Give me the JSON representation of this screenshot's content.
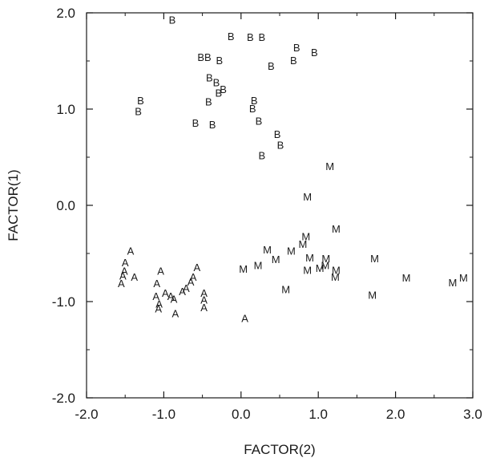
{
  "chart_data": {
    "type": "scatter",
    "xlabel": "FACTOR(2)",
    "ylabel": "FACTOR(1)",
    "xlim": [
      -2.0,
      3.0
    ],
    "ylim": [
      -2.0,
      2.0
    ],
    "xticks": [
      "-2.0",
      "-1.0",
      "0.0",
      "1.0",
      "2.0",
      "3.0"
    ],
    "yticks": [
      "-2.0",
      "-1.0",
      "0.0",
      "1.0",
      "2.0"
    ],
    "grid": false,
    "series": [
      {
        "marker": "B",
        "points": [
          [
            -0.89,
            1.93
          ],
          [
            -0.13,
            1.76
          ],
          [
            0.12,
            1.75
          ],
          [
            0.27,
            1.75
          ],
          [
            -0.52,
            1.54
          ],
          [
            -0.43,
            1.54
          ],
          [
            -0.28,
            1.51
          ],
          [
            0.72,
            1.64
          ],
          [
            0.95,
            1.59
          ],
          [
            0.68,
            1.51
          ],
          [
            0.39,
            1.45
          ],
          [
            -0.41,
            1.33
          ],
          [
            -0.32,
            1.28
          ],
          [
            -0.23,
            1.21
          ],
          [
            -0.29,
            1.17
          ],
          [
            -1.3,
            1.09
          ],
          [
            -1.33,
            0.98
          ],
          [
            -0.42,
            1.08
          ],
          [
            0.17,
            1.09
          ],
          [
            0.15,
            1.01
          ],
          [
            0.23,
            0.88
          ],
          [
            -0.59,
            0.86
          ],
          [
            -0.37,
            0.84
          ],
          [
            0.47,
            0.74
          ],
          [
            0.51,
            0.63
          ],
          [
            0.27,
            0.52
          ]
        ]
      },
      {
        "marker": "M",
        "points": [
          [
            1.15,
            0.41
          ],
          [
            0.86,
            0.09
          ],
          [
            1.23,
            -0.24
          ],
          [
            0.34,
            -0.46
          ],
          [
            0.45,
            -0.56
          ],
          [
            0.65,
            -0.47
          ],
          [
            0.8,
            -0.4
          ],
          [
            0.84,
            -0.32
          ],
          [
            0.89,
            -0.54
          ],
          [
            1.1,
            -0.55
          ],
          [
            1.73,
            -0.55
          ],
          [
            0.22,
            -0.62
          ],
          [
            0.03,
            -0.66
          ],
          [
            0.86,
            -0.67
          ],
          [
            1.02,
            -0.65
          ],
          [
            1.09,
            -0.62
          ],
          [
            1.23,
            -0.67
          ],
          [
            1.22,
            -0.74
          ],
          [
            2.14,
            -0.75
          ],
          [
            2.74,
            -0.8
          ],
          [
            2.88,
            -0.75
          ],
          [
            0.58,
            -0.87
          ],
          [
            1.7,
            -0.93
          ]
        ]
      },
      {
        "marker": "A",
        "points": [
          [
            -1.43,
            -0.47
          ],
          [
            -1.5,
            -0.59
          ],
          [
            -1.51,
            -0.68
          ],
          [
            -1.53,
            -0.73
          ],
          [
            -1.55,
            -0.81
          ],
          [
            -1.38,
            -0.74
          ],
          [
            -1.04,
            -0.68
          ],
          [
            -0.57,
            -0.64
          ],
          [
            -0.62,
            -0.74
          ],
          [
            -0.65,
            -0.79
          ],
          [
            -0.71,
            -0.86
          ],
          [
            -0.76,
            -0.89
          ],
          [
            -1.09,
            -0.81
          ],
          [
            -0.98,
            -0.91
          ],
          [
            -0.91,
            -0.94
          ],
          [
            -0.87,
            -0.97
          ],
          [
            -1.1,
            -0.94
          ],
          [
            -1.06,
            -1.02
          ],
          [
            -1.07,
            -1.07
          ],
          [
            -0.48,
            -0.91
          ],
          [
            -0.48,
            -0.98
          ],
          [
            -0.48,
            -1.06
          ],
          [
            -0.85,
            -1.12
          ],
          [
            0.05,
            -1.17
          ]
        ]
      }
    ]
  }
}
